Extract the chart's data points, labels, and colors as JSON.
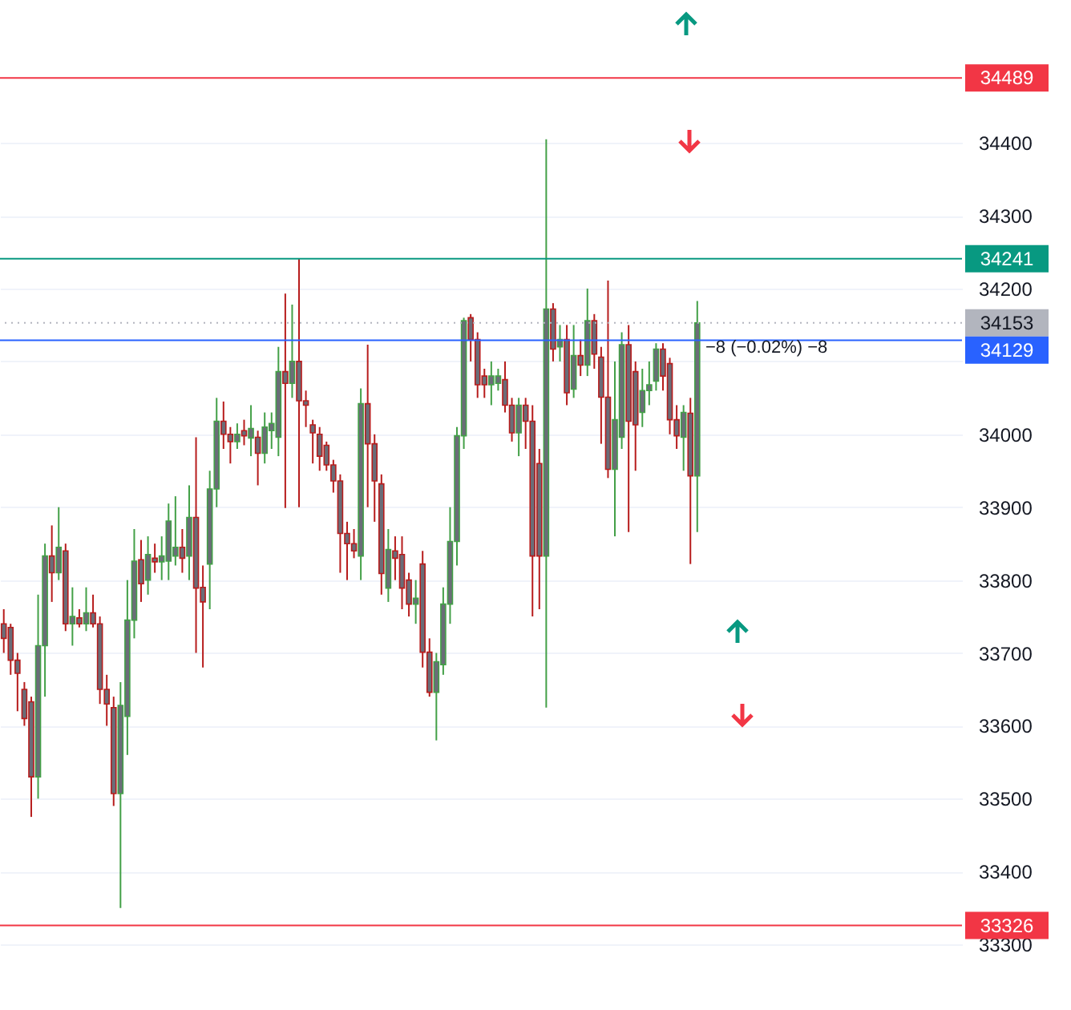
{
  "chart_data": {
    "type": "candlestick",
    "categories": [
      null,
      null,
      null,
      null,
      null,
      null,
      null,
      null,
      null,
      null,
      null,
      null,
      null,
      null,
      null,
      null,
      null,
      null,
      null,
      null,
      null,
      null,
      null,
      null,
      null,
      null,
      null,
      null,
      null,
      null,
      null,
      null,
      null,
      null,
      null,
      null,
      null,
      null,
      null,
      null,
      null,
      null,
      null,
      null,
      null,
      null,
      null,
      null,
      null,
      null,
      null,
      null,
      null,
      null,
      null,
      null,
      null,
      null,
      null,
      null,
      null,
      null,
      null,
      null,
      null,
      null,
      null,
      null,
      null,
      null,
      null,
      null,
      null,
      null,
      null,
      null,
      null,
      null,
      null,
      null,
      null,
      null,
      null,
      null,
      null,
      null,
      null,
      null,
      null,
      null,
      null,
      null,
      null,
      null,
      null,
      null,
      null,
      null,
      null,
      null,
      null,
      null,
      null,
      null,
      null,
      null,
      null,
      null,
      null,
      null,
      null,
      null,
      null,
      null,
      null,
      null,
      null,
      null,
      null,
      null,
      null,
      null,
      null,
      null,
      null,
      null,
      null,
      null,
      null,
      null,
      null,
      null,
      null,
      null,
      null,
      null,
      null,
      null,
      null,
      null
    ],
    "ohlc": [
      [
        33740,
        33760,
        33700,
        33720
      ],
      [
        33735,
        33740,
        33670,
        33690
      ],
      [
        33690,
        33700,
        33620,
        33672
      ],
      [
        33650,
        33660,
        33600,
        33610
      ],
      [
        33633,
        33640,
        33475,
        33530
      ],
      [
        33530,
        33780,
        33500,
        33710
      ],
      [
        33710,
        33850,
        33640,
        33833
      ],
      [
        33833,
        33875,
        33770,
        33810
      ],
      [
        33810,
        33900,
        33800,
        33845
      ],
      [
        33840,
        33850,
        33730,
        33740
      ],
      [
        33740,
        33790,
        33710,
        33750
      ],
      [
        33748,
        33760,
        33735,
        33740
      ],
      [
        33740,
        33790,
        33730,
        33755
      ],
      [
        33755,
        33780,
        33735,
        33740
      ],
      [
        33740,
        33750,
        33630,
        33650
      ],
      [
        33650,
        33670,
        33600,
        33630
      ],
      [
        33625,
        33640,
        33490,
        33507
      ],
      [
        33507,
        33660,
        33350,
        33628
      ],
      [
        33613,
        33800,
        33560,
        33745
      ],
      [
        33745,
        33870,
        33720,
        33826
      ],
      [
        33828,
        33855,
        33770,
        33795
      ],
      [
        33800,
        33860,
        33780,
        33835
      ],
      [
        33830,
        33850,
        33810,
        33825
      ],
      [
        33825,
        33860,
        33800,
        33833
      ],
      [
        33826,
        33905,
        33800,
        33881
      ],
      [
        33833,
        33915,
        33820,
        33845
      ],
      [
        33845,
        33870,
        33810,
        33830
      ],
      [
        33833,
        33930,
        33800,
        33886
      ],
      [
        33886,
        33996,
        33700,
        33789
      ],
      [
        33790,
        33820,
        33680,
        33770
      ],
      [
        33822,
        33950,
        33760,
        33925
      ],
      [
        33925,
        34050,
        33900,
        34018
      ],
      [
        34018,
        34045,
        33980,
        34000
      ],
      [
        34000,
        34010,
        33960,
        33990
      ],
      [
        33990,
        34015,
        33980,
        34000
      ],
      [
        34005,
        34020,
        33985,
        33998
      ],
      [
        33995,
        34040,
        33970,
        34008
      ],
      [
        33996,
        34005,
        33930,
        33974
      ],
      [
        33974,
        34030,
        33960,
        34010
      ],
      [
        34005,
        34030,
        33980,
        34015
      ],
      [
        33996,
        34120,
        33970,
        34086
      ],
      [
        34086,
        34193,
        33899,
        34070
      ],
      [
        34070,
        34178,
        34050,
        34100
      ],
      [
        34100,
        34241,
        33900,
        34046
      ],
      [
        34046,
        34060,
        34010,
        34040
      ],
      [
        34013,
        34020,
        33960,
        34002
      ],
      [
        34000,
        34010,
        33950,
        33970
      ],
      [
        33985,
        33990,
        33950,
        33958
      ],
      [
        33958,
        33965,
        33920,
        33936
      ],
      [
        33936,
        33945,
        33810,
        33864
      ],
      [
        33864,
        33880,
        33800,
        33850
      ],
      [
        33850,
        33870,
        33830,
        33840
      ],
      [
        33833,
        34063,
        33800,
        34042
      ],
      [
        34042,
        34123,
        33900,
        33987
      ],
      [
        33987,
        34000,
        33880,
        33936
      ],
      [
        33932,
        33945,
        33780,
        33809
      ],
      [
        33789,
        33870,
        33770,
        33842
      ],
      [
        33840,
        33860,
        33800,
        33830
      ],
      [
        33835,
        33860,
        33760,
        33789
      ],
      [
        33800,
        33810,
        33750,
        33767
      ],
      [
        33767,
        33800,
        33740,
        33775
      ],
      [
        33822,
        33840,
        33680,
        33701
      ],
      [
        33701,
        33720,
        33640,
        33646
      ],
      [
        33646,
        33700,
        33580,
        33688
      ],
      [
        33684,
        33790,
        33670,
        33767
      ],
      [
        33767,
        33900,
        33740,
        33853
      ],
      [
        33853,
        34010,
        33820,
        33998
      ],
      [
        33998,
        34160,
        33980,
        34156
      ],
      [
        34160,
        34165,
        34100,
        34130
      ],
      [
        34130,
        34140,
        34050,
        34068
      ],
      [
        34080,
        34090,
        34050,
        34068
      ],
      [
        34068,
        34100,
        34040,
        34080
      ],
      [
        34070,
        34090,
        34060,
        34080
      ],
      [
        34075,
        34100,
        34030,
        34040
      ],
      [
        34040,
        34050,
        33990,
        34002
      ],
      [
        34002,
        34050,
        33970,
        34040
      ],
      [
        34040,
        34050,
        33980,
        34018
      ],
      [
        34018,
        34040,
        33750,
        33833
      ],
      [
        33960,
        33980,
        33760,
        33833
      ],
      [
        33833,
        34405,
        33625,
        34172
      ],
      [
        34172,
        34180,
        34100,
        34117
      ],
      [
        34120,
        34150,
        34100,
        34130
      ],
      [
        34130,
        34150,
        34040,
        34057
      ],
      [
        34062,
        34150,
        34050,
        34108
      ],
      [
        34108,
        34130,
        34080,
        34095
      ],
      [
        34095,
        34200,
        34080,
        34156
      ],
      [
        34156,
        34165,
        34090,
        34110
      ],
      [
        34106,
        34120,
        33987,
        34051
      ],
      [
        34051,
        34211,
        33940,
        33952
      ],
      [
        33952,
        34100,
        33860,
        34020
      ],
      [
        33996,
        34140,
        33980,
        34123
      ],
      [
        34123,
        34150,
        33866,
        34018
      ],
      [
        34086,
        34100,
        33950,
        34013
      ],
      [
        34030,
        34090,
        34010,
        34060
      ],
      [
        34060,
        34100,
        34040,
        34068
      ],
      [
        34073,
        34125,
        34060,
        34117
      ],
      [
        34117,
        34125,
        34060,
        34080
      ],
      [
        34097,
        34105,
        34000,
        34020
      ],
      [
        34020,
        34040,
        33980,
        33998
      ],
      [
        33996,
        34040,
        33950,
        34030
      ],
      [
        34029,
        34050,
        33822,
        33943
      ],
      [
        33943,
        34183,
        33866,
        34153
      ],
      null,
      null,
      null,
      null,
      null,
      null,
      null,
      null,
      null,
      null,
      null,
      null,
      null,
      null,
      null,
      null,
      null,
      null,
      null,
      null,
      null,
      null,
      null,
      null,
      null,
      null,
      null,
      null,
      null,
      null,
      null,
      null,
      null,
      null,
      null,
      null,
      null,
      null
    ],
    "ylim": [
      33210,
      34596
    ],
    "yticks": [
      33300,
      33400,
      33500,
      33600,
      33700,
      33800,
      33900,
      34000,
      {
        "value": 34100,
        "label": null
      },
      34200,
      34300,
      34400
    ],
    "grid": "y",
    "tick_labels": "y",
    "ref_lines": [
      {
        "axis": "y",
        "value": 34489,
        "label": "34489",
        "color": "#f23645"
      },
      {
        "axis": "y",
        "value": 34241,
        "label": "34241",
        "color": "#089981"
      },
      {
        "axis": "y",
        "value": 34153,
        "label": "34153",
        "color": "#b2b5be",
        "line_style": "dotted"
      },
      {
        "axis": "y",
        "value": 34129,
        "label": "34129",
        "color": "#2962ff"
      },
      {
        "axis": "y",
        "value": 33326,
        "label": "33326",
        "color": "#f23645"
      }
    ],
    "annotations": [
      "−8 (−0.02%) −8"
    ]
  }
}
